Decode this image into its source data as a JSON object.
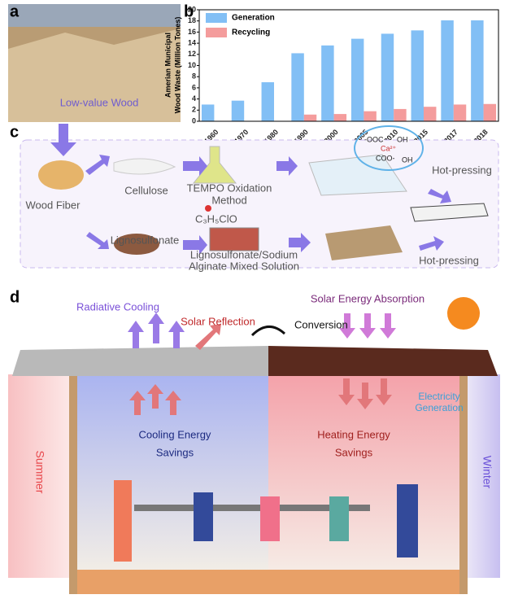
{
  "chart_data": {
    "type": "bar",
    "ylabel": [
      "Amerian Municipal",
      "Wood Waste (Million Tones)"
    ],
    "categories": [
      "1960",
      "1970",
      "1980",
      "1990",
      "2000",
      "2005",
      "2010",
      "2015",
      "2017",
      "2018"
    ],
    "series": [
      {
        "name": "Generation",
        "color": "#6cb4f3",
        "values": [
          3.0,
          3.7,
          7.0,
          12.2,
          13.6,
          14.8,
          15.7,
          16.3,
          18.1,
          18.1
        ]
      },
      {
        "name": "Recycling",
        "color": "#f28b8b",
        "values": [
          0,
          0,
          0,
          1.2,
          1.3,
          1.8,
          2.2,
          2.6,
          3.0,
          3.1
        ]
      }
    ],
    "ylim": [
      0,
      20
    ],
    "yticks": [
      0,
      2,
      4,
      6,
      8,
      10,
      12,
      14,
      16,
      18,
      20
    ],
    "legend": "upper left"
  },
  "panel_labels": [
    "a",
    "b",
    "c",
    "d"
  ],
  "panel_a": {
    "caption": "Low-value Wood"
  },
  "panel_c": {
    "wood_fiber": "Wood Fiber",
    "cellulose": "Cellulose",
    "tempo": [
      "TEMPO Oxidation",
      "Method"
    ],
    "reagent": "C₃H₅ClO",
    "chem": [
      "-OOC",
      "OH",
      "Ca²⁺",
      "COO-",
      "OH"
    ],
    "hot_pressing_top": "Hot-pressing",
    "lignosulfonate": "Lignosulfonate",
    "mixed": [
      "Lignosulfonate/Sodium",
      "Alginate Mixed Solution"
    ],
    "hot_pressing_bottom": "Hot-pressing"
  },
  "panel_d": {
    "radiative": "Radiative Cooling",
    "reflection": "Solar Reflection",
    "conversion": "Conversion",
    "absorption": "Solar Energy Absorption",
    "electricity": [
      "Electricity",
      "Generation"
    ],
    "cooling": [
      "Cooling Energy",
      "Savings"
    ],
    "heating": [
      "Heating Energy",
      "Savings"
    ],
    "summer": "Summer",
    "winter": "Winter"
  }
}
